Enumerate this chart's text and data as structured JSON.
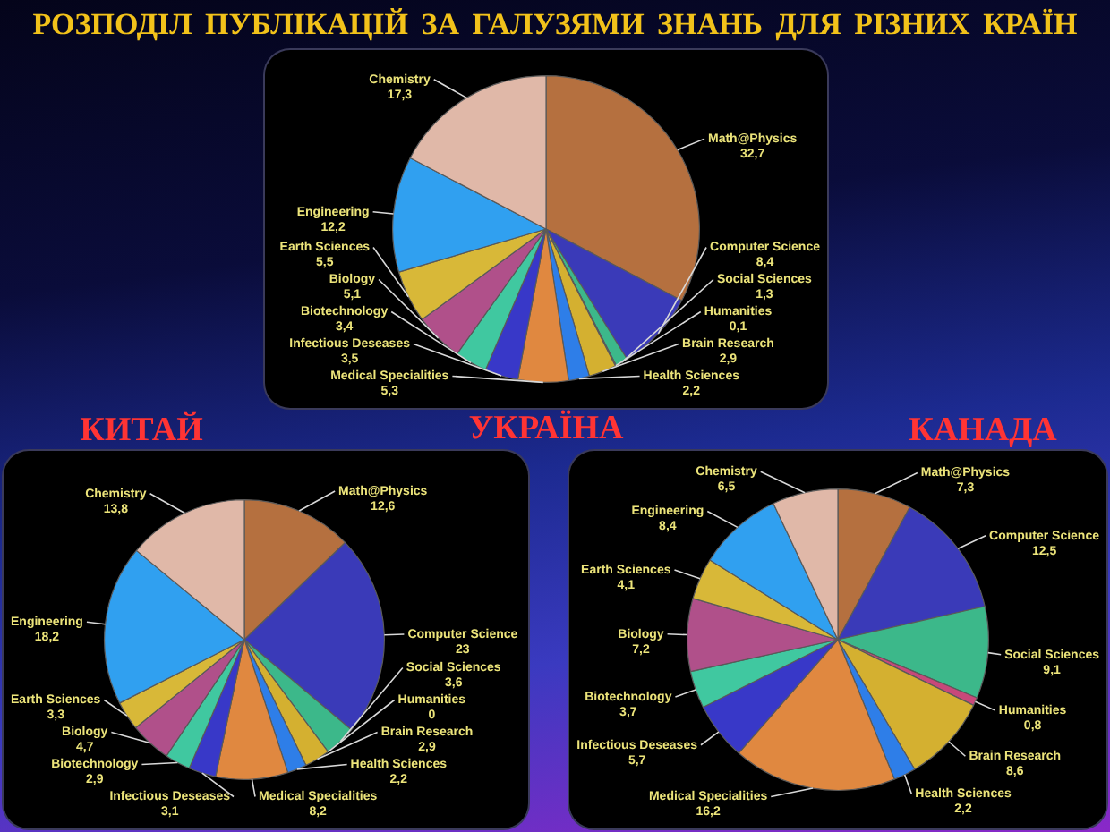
{
  "chart_data": [
    {
      "type": "pie",
      "title": "РОЗПОДІЛ ПУБЛІКАЦІЙ ЗА ГАЛУЗЯМИ ЗНАНЬ ДЛЯ РІЗНИХ КРАЇН",
      "subtitle": "УКРАЇНА",
      "categories": [
        "Math@Physics",
        "Computer Science",
        "Social Sciences",
        "Humanities",
        "Brain Research",
        "Health Sciences",
        "Medical Specialities",
        "Infectious Deseases",
        "Biotechnology",
        "Biology",
        "Earth Sciences",
        "Engineering",
        "Chemistry"
      ],
      "values": [
        32.7,
        8.4,
        1.3,
        0.1,
        2.9,
        2.2,
        5.3,
        3.5,
        3.4,
        5.1,
        5.5,
        12.2,
        17.3
      ],
      "value_labels": [
        "32,7",
        "8,4",
        "1,3",
        "0,1",
        "2,9",
        "2,2",
        "5,3",
        "3,5",
        "3,4",
        "5,1",
        "5,5",
        "12,2",
        "17,3"
      ],
      "colors": [
        "#b5703f",
        "#3a3ab8",
        "#3cb88a",
        "#c8487a",
        "#d4b030",
        "#2e7ee8",
        "#e08840",
        "#3838c8",
        "#40c8a0",
        "#b0508a",
        "#d8b838",
        "#30a0f0",
        "#e0b8a8"
      ]
    },
    {
      "type": "pie",
      "title": "КИТАЙ",
      "categories": [
        "Math@Physics",
        "Computer Science",
        "Social Sciences",
        "Humanities",
        "Brain Research",
        "Health Sciences",
        "Medical Specialities",
        "Infectious Deseases",
        "Biotechnology",
        "Biology",
        "Earth Sciences",
        "Engineering",
        "Chemistry"
      ],
      "values": [
        12.6,
        23,
        3.6,
        0,
        2.9,
        2.2,
        8.2,
        3.1,
        2.9,
        4.7,
        3.3,
        18.2,
        13.8
      ],
      "value_labels": [
        "12,6",
        "23",
        "3,6",
        "0",
        "2,9",
        "2,2",
        "8,2",
        "3,1",
        "2,9",
        "4,7",
        "3,3",
        "18,2",
        "13,8"
      ],
      "colors": [
        "#b5703f",
        "#3a3ab8",
        "#3cb88a",
        "#c8487a",
        "#d4b030",
        "#2e7ee8",
        "#e08840",
        "#3838c8",
        "#40c8a0",
        "#b0508a",
        "#d8b838",
        "#30a0f0",
        "#e0b8a8"
      ]
    },
    {
      "type": "pie",
      "title": "КАНАДА",
      "categories": [
        "Math@Physics",
        "Computer Science",
        "Social Sciences",
        "Humanities",
        "Brain Research",
        "Health Sciences",
        "Medical Specialities",
        "Infectious Deseases",
        "Biotechnology",
        "Biology",
        "Earth Sciences",
        "Engineering",
        "Chemistry"
      ],
      "values": [
        7.3,
        12.5,
        9.1,
        0.8,
        8.6,
        2.2,
        16.2,
        5.7,
        3.7,
        7.2,
        4.1,
        8.4,
        6.5
      ],
      "value_labels": [
        "7,3",
        "12,5",
        "9,1",
        "0,8",
        "8,6",
        "2,2",
        "16,2",
        "5,7",
        "3,7",
        "7,2",
        "4,1",
        "8,4",
        "6,5"
      ],
      "colors": [
        "#b5703f",
        "#3a3ab8",
        "#3cb88a",
        "#c8487a",
        "#d4b030",
        "#2e7ee8",
        "#e08840",
        "#3838c8",
        "#40c8a0",
        "#b0508a",
        "#d8b838",
        "#30a0f0",
        "#e0b8a8"
      ]
    }
  ]
}
